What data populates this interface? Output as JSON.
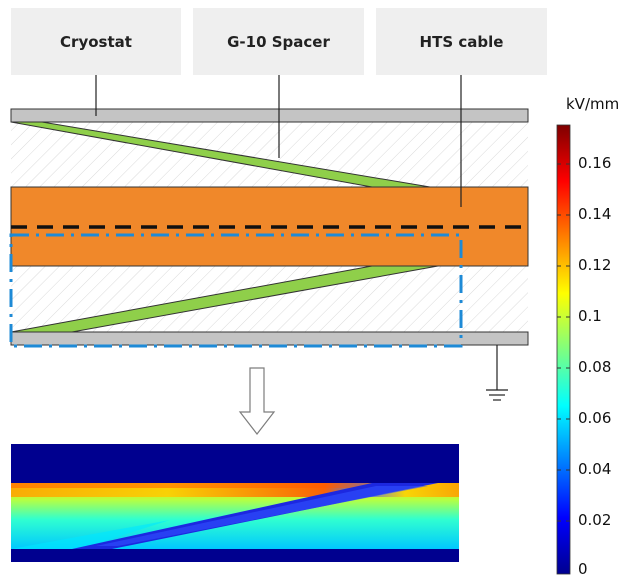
{
  "callouts": {
    "cryostat": "Cryostat",
    "spacer": "G-10 Spacer",
    "cable": "HTS cable"
  },
  "colorbar": {
    "unit": "kV/mm",
    "ticks": [
      "0.16",
      "0.14",
      "0.12",
      "0.1",
      "0.08",
      "0.06",
      "0.04",
      "0.02",
      "0"
    ],
    "colormap": "jet"
  },
  "colors": {
    "cryostat_wall": "#c4c4c4",
    "spacer_fill": "#8fcf4a",
    "cable_fill": "#f0882a",
    "hatch": "#d8d8d8",
    "dashed_line": "#111111",
    "dashdot_line": "#1e8ad6"
  }
}
